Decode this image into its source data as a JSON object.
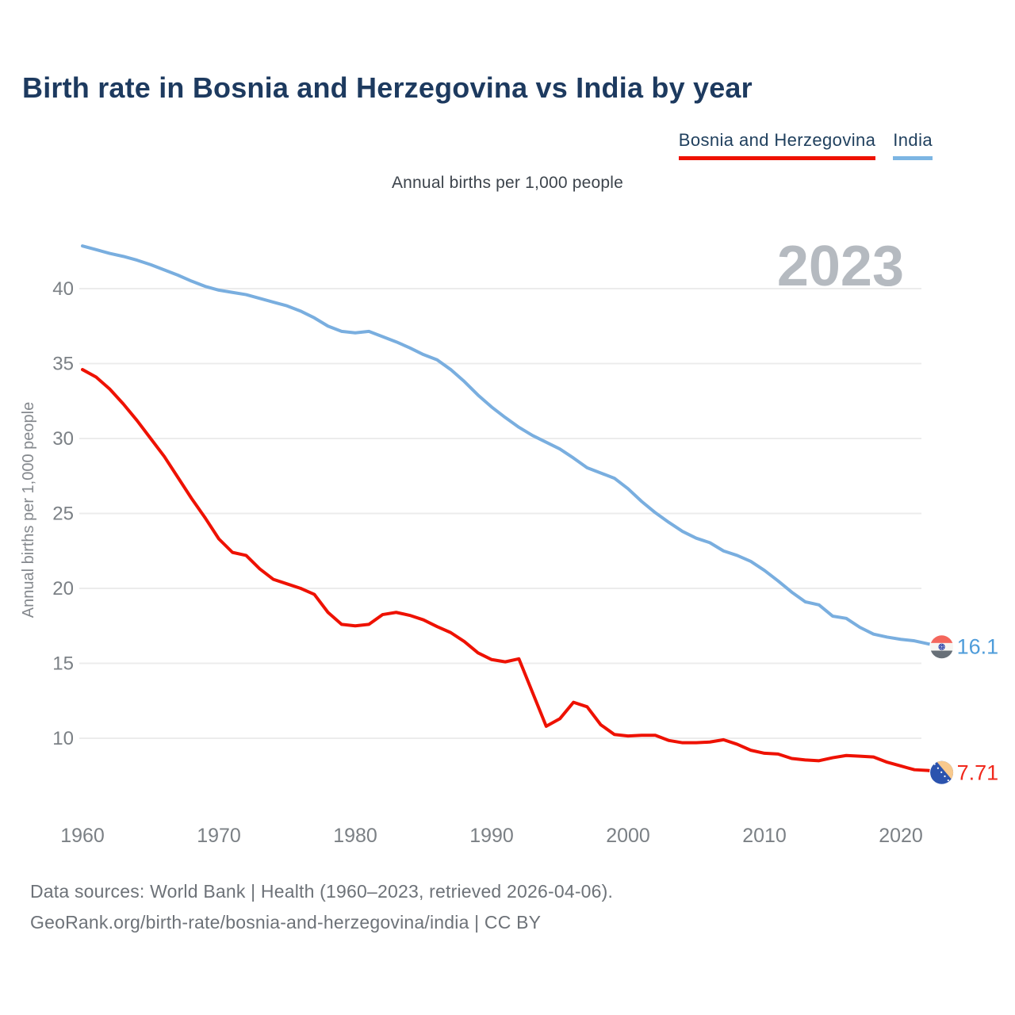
{
  "title": "Birth rate in Bosnia and Herzegovina vs India by year",
  "subtitle": "Annual births per 1,000 people",
  "watermark": "2023",
  "legend": [
    {
      "label": "Bosnia and Herzegovina",
      "color": "#ee1100"
    },
    {
      "label": "India",
      "color": "#7cb5e3"
    }
  ],
  "footer": {
    "line1": "Data sources: World Bank | Health (1960–2023, retrieved 2026-04-06).",
    "line2": "GeoRank.org/birth-rate/bosnia-and-herzegovina/india | CC BY"
  },
  "chart_data": {
    "type": "line",
    "title": "Birth rate in Bosnia and Herzegovina vs India by year",
    "xlabel": "",
    "ylabel": "Annual births per 1,000 people",
    "grid": true,
    "legend_position": "top-right",
    "xlim": [
      1960,
      2023
    ],
    "ylim": [
      7.5,
      43.5
    ],
    "yticks": [
      40,
      35,
      30,
      25,
      20,
      15,
      10
    ],
    "xticks": [
      1960,
      1970,
      1980,
      1990,
      2000,
      2010,
      2020
    ],
    "x": [
      1960,
      1961,
      1962,
      1963,
      1964,
      1965,
      1966,
      1967,
      1968,
      1969,
      1970,
      1971,
      1972,
      1973,
      1974,
      1975,
      1976,
      1977,
      1978,
      1979,
      1980,
      1981,
      1982,
      1983,
      1984,
      1985,
      1986,
      1987,
      1988,
      1989,
      1990,
      1991,
      1992,
      1993,
      1994,
      1995,
      1996,
      1997,
      1998,
      1999,
      2000,
      2001,
      2002,
      2003,
      2004,
      2005,
      2006,
      2007,
      2008,
      2009,
      2010,
      2011,
      2012,
      2013,
      2014,
      2015,
      2016,
      2017,
      2018,
      2019,
      2020,
      2021,
      2022,
      2023
    ],
    "series": [
      {
        "name": "Bosnia and Herzegovina",
        "color": "#ee1100",
        "label_color": "#f0281c",
        "flag": "bosnia",
        "end_label": "7.71",
        "values": [
          34.6,
          34.1,
          33.3,
          32.3,
          31.2,
          30.0,
          28.8,
          27.4,
          26.0,
          24.7,
          23.3,
          22.4,
          22.2,
          21.3,
          20.6,
          20.3,
          20.0,
          19.6,
          18.4,
          17.6,
          17.5,
          17.6,
          18.25,
          18.4,
          18.2,
          17.9,
          17.45,
          17.05,
          16.45,
          15.7,
          15.25,
          15.1,
          15.3,
          13.05,
          10.8,
          11.3,
          12.4,
          12.1,
          10.9,
          10.25,
          10.15,
          10.2,
          10.2,
          9.85,
          9.7,
          9.7,
          9.75,
          9.9,
          9.6,
          9.2,
          9.0,
          8.95,
          8.65,
          8.55,
          8.5,
          8.7,
          8.85,
          8.8,
          8.75,
          8.4,
          8.15,
          7.9,
          7.85,
          7.71
        ]
      },
      {
        "name": "India",
        "color": "#79aedf",
        "label_color": "#4e9cda",
        "flag": "india",
        "end_label": "16.1",
        "values": [
          42.85,
          42.6,
          42.35,
          42.15,
          41.9,
          41.6,
          41.25,
          40.9,
          40.5,
          40.15,
          39.9,
          39.75,
          39.6,
          39.35,
          39.1,
          38.85,
          38.5,
          38.05,
          37.5,
          37.15,
          37.05,
          37.15,
          36.8,
          36.45,
          36.05,
          35.6,
          35.25,
          34.6,
          33.8,
          32.9,
          32.1,
          31.4,
          30.75,
          30.2,
          29.75,
          29.3,
          28.7,
          28.05,
          27.7,
          27.35,
          26.65,
          25.8,
          25.05,
          24.4,
          23.8,
          23.35,
          23.05,
          22.5,
          22.2,
          21.8,
          21.2,
          20.5,
          19.75,
          19.1,
          18.9,
          18.15,
          18.0,
          17.4,
          16.95,
          16.75,
          16.6,
          16.5,
          16.3,
          16.1
        ]
      }
    ]
  }
}
